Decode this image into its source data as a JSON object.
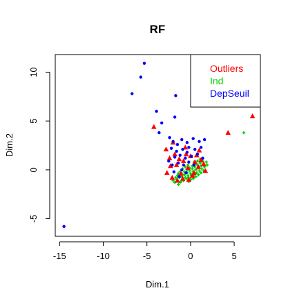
{
  "chart_data": {
    "type": "scatter",
    "title": "RF",
    "xlabel": "Dim.1",
    "ylabel": "Dim.2",
    "xlim": [
      -15.5,
      8
    ],
    "ylim": [
      -6.8,
      11.8
    ],
    "xticks": [
      -15,
      -10,
      -5,
      0,
      5
    ],
    "yticks": [
      -5,
      0,
      5,
      10
    ],
    "grid": false,
    "legend_position": "top-right",
    "series": [
      {
        "name": "Outliers",
        "color": "#ff0000",
        "marker": "triangle",
        "points": [
          [
            7.1,
            5.5
          ],
          [
            4.3,
            3.8
          ],
          [
            -4.2,
            4.4
          ],
          [
            -2.8,
            2.1
          ],
          [
            -2.4,
            1.2
          ],
          [
            -2.7,
            -0.3
          ],
          [
            -2.1,
            -0.8
          ],
          [
            -2.0,
            2.8
          ],
          [
            -1.6,
            0.5
          ],
          [
            -1.3,
            1.1
          ],
          [
            -1.1,
            -0.4
          ],
          [
            -0.8,
            0.9
          ],
          [
            -0.5,
            1.6
          ],
          [
            -0.3,
            0.2
          ],
          [
            0.0,
            1.4
          ],
          [
            0.2,
            -0.6
          ],
          [
            0.5,
            0.8
          ],
          [
            0.7,
            1.5
          ],
          [
            0.9,
            0.3
          ],
          [
            1.2,
            1.0
          ],
          [
            1.5,
            0.6
          ],
          [
            1.7,
            -0.1
          ],
          [
            -1.5,
            -1.1
          ],
          [
            -0.9,
            -0.9
          ],
          [
            -0.2,
            -1.0
          ],
          [
            0.4,
            -0.3
          ],
          [
            1.0,
            2.0
          ],
          [
            -1.8,
            1.6
          ],
          [
            -2.3,
            0.4
          ],
          [
            -0.6,
            2.3
          ]
        ]
      },
      {
        "name": "Ind",
        "color": "#00cc00",
        "marker": "plus",
        "points": [
          [
            6.1,
            3.8
          ],
          [
            -1.2,
            -1.3
          ],
          [
            -0.9,
            -1.0
          ],
          [
            -0.6,
            -0.8
          ],
          [
            -0.3,
            -0.6
          ],
          [
            0.0,
            -0.4
          ],
          [
            0.3,
            -0.2
          ],
          [
            0.6,
            0.0
          ],
          [
            0.9,
            0.2
          ],
          [
            1.2,
            0.4
          ],
          [
            1.5,
            0.6
          ],
          [
            1.8,
            0.8
          ],
          [
            -1.0,
            -0.7
          ],
          [
            -0.7,
            -0.5
          ],
          [
            -0.4,
            -0.3
          ],
          [
            -0.1,
            -0.1
          ],
          [
            0.2,
            0.1
          ],
          [
            0.5,
            0.3
          ],
          [
            0.8,
            0.5
          ],
          [
            1.1,
            0.7
          ],
          [
            1.4,
            0.9
          ],
          [
            -1.4,
            -1.5
          ],
          [
            -1.1,
            -1.2
          ],
          [
            -0.8,
            -1.1
          ],
          [
            -0.5,
            -0.9
          ],
          [
            -0.2,
            -0.8
          ],
          [
            0.1,
            -0.6
          ],
          [
            0.4,
            -0.5
          ],
          [
            0.7,
            -0.3
          ],
          [
            1.0,
            -0.1
          ],
          [
            1.3,
            0.1
          ],
          [
            1.6,
            0.3
          ],
          [
            -1.6,
            -1.0
          ],
          [
            -1.3,
            -0.8
          ],
          [
            -1.0,
            -0.4
          ],
          [
            -0.7,
            -0.2
          ],
          [
            -0.4,
            0.0
          ],
          [
            -0.1,
            0.2
          ],
          [
            0.2,
            0.4
          ],
          [
            0.5,
            0.6
          ],
          [
            -1.8,
            -1.3
          ],
          [
            -1.5,
            -0.6
          ],
          [
            -1.2,
            -0.2
          ],
          [
            0.0,
            -1.0
          ],
          [
            0.3,
            -0.9
          ],
          [
            0.6,
            -0.7
          ],
          [
            0.9,
            -0.5
          ],
          [
            1.2,
            -0.3
          ],
          [
            1.5,
            -0.1
          ],
          [
            1.9,
            0.5
          ],
          [
            -1.7,
            -0.8
          ],
          [
            -1.4,
            -0.4
          ],
          [
            -0.9,
            0.1
          ],
          [
            -0.6,
            0.3
          ],
          [
            -0.3,
            0.5
          ],
          [
            0.8,
            0.9
          ],
          [
            1.1,
            1.1
          ],
          [
            0.4,
            0.8
          ],
          [
            -2.0,
            -1.1
          ],
          [
            -0.2,
            -1.2
          ]
        ]
      },
      {
        "name": "DepSeuil",
        "color": "#0000ff",
        "marker": "dot",
        "points": [
          [
            -5.3,
            10.9
          ],
          [
            -5.7,
            9.5
          ],
          [
            -6.7,
            7.8
          ],
          [
            -1.7,
            7.6
          ],
          [
            -3.9,
            6.0
          ],
          [
            -1.8,
            5.4
          ],
          [
            -3.3,
            4.8
          ],
          [
            -3.6,
            3.8
          ],
          [
            -2.4,
            3.3
          ],
          [
            -2.0,
            2.9
          ],
          [
            -1.5,
            2.6
          ],
          [
            -1.0,
            3.1
          ],
          [
            -0.4,
            2.8
          ],
          [
            0.3,
            3.2
          ],
          [
            1.0,
            2.9
          ],
          [
            1.6,
            3.1
          ],
          [
            -2.2,
            2.2
          ],
          [
            -1.6,
            1.9
          ],
          [
            -0.9,
            2.1
          ],
          [
            -0.2,
            2.3
          ],
          [
            0.5,
            2.1
          ],
          [
            1.2,
            2.3
          ],
          [
            -1.8,
            1.3
          ],
          [
            -1.2,
            1.5
          ],
          [
            -0.6,
            1.2
          ],
          [
            0.1,
            1.4
          ],
          [
            0.8,
            1.6
          ],
          [
            1.4,
            1.2
          ],
          [
            -2.1,
            0.5
          ],
          [
            -1.4,
            0.7
          ],
          [
            -0.8,
            0.5
          ],
          [
            -0.2,
            0.8
          ],
          [
            0.4,
            0.5
          ],
          [
            -1.9,
            -0.2
          ],
          [
            -1.0,
            0.0
          ],
          [
            -0.5,
            -0.3
          ],
          [
            -1.3,
            -0.7
          ],
          [
            -14.5,
            -5.8
          ],
          [
            -2.5,
            0.9
          ],
          [
            -0.4,
            1.8
          ]
        ]
      }
    ]
  }
}
